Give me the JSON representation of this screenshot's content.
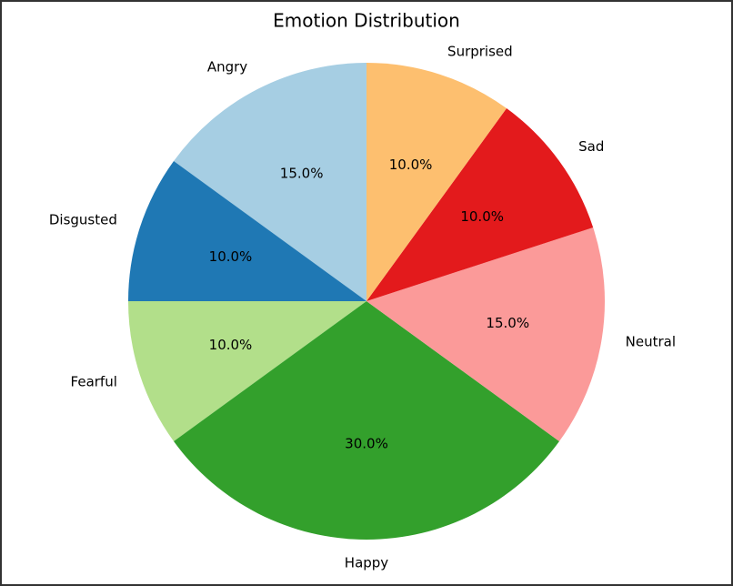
{
  "chart_data": {
    "type": "pie",
    "title": "Emotion Distribution",
    "categories": [
      "Angry",
      "Disgusted",
      "Fearful",
      "Happy",
      "Neutral",
      "Sad",
      "Surprised"
    ],
    "values": [
      15,
      10,
      10,
      30,
      15,
      10,
      10
    ],
    "value_labels": [
      "15.0%",
      "10.0%",
      "10.0%",
      "30.0%",
      "15.0%",
      "10.0%",
      "10.0%"
    ],
    "colors": [
      "#a6cee3",
      "#1f78b4",
      "#b2df8a",
      "#33a02c",
      "#fb9a99",
      "#e31a1c",
      "#fdbf6f"
    ]
  }
}
